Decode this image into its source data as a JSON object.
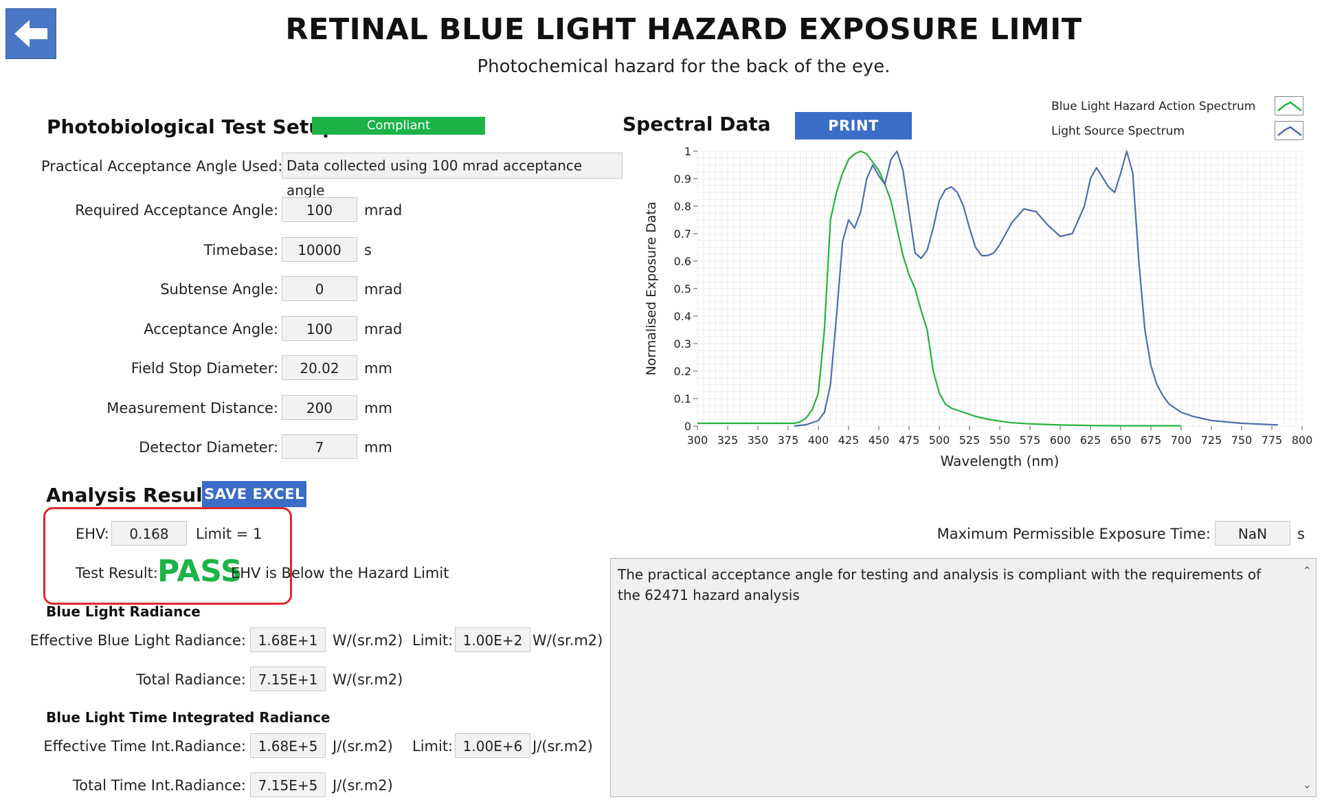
{
  "header": {
    "title": "RETINAL BLUE LIGHT HAZARD EXPOSURE LIMIT",
    "subtitle": "Photochemical hazard for the back of the eye.",
    "back_icon": "arrow-left-icon"
  },
  "setup": {
    "title": "Photobiological Test Setup",
    "status": "Compliant",
    "practical_angle": {
      "label": "Practical Acceptance Angle Used:",
      "value": "Data collected using 100 mrad acceptance angle"
    },
    "fields": [
      {
        "label": "Required Acceptance Angle:",
        "value": "100",
        "unit": "mrad"
      },
      {
        "label": "Timebase:",
        "value": "10000",
        "unit": "s"
      },
      {
        "label": "Subtense Angle:",
        "value": "0",
        "unit": "mrad"
      },
      {
        "label": "Acceptance Angle:",
        "value": "100",
        "unit": "mrad"
      },
      {
        "label": "Field Stop Diameter:",
        "value": "20.02",
        "unit": "mm"
      },
      {
        "label": "Measurement Distance:",
        "value": "200",
        "unit": "mm"
      },
      {
        "label": "Detector Diameter:",
        "value": "7",
        "unit": "mm"
      }
    ]
  },
  "spectral": {
    "title": "Spectral Data",
    "print_label": "PRINT SCREEN",
    "legend": [
      {
        "name": "Blue Light Hazard Action Spectrum",
        "color": "#22b33a"
      },
      {
        "name": "Light Source Spectrum",
        "color": "#4a6fae"
      }
    ]
  },
  "chart_data": {
    "type": "line",
    "xlabel": "Wavelength (nm)",
    "ylabel": "Normalised Exposure Data",
    "xlim": [
      300,
      800
    ],
    "ylim": [
      0,
      1
    ],
    "xticks": [
      "300",
      "325",
      "350",
      "375",
      "400",
      "425",
      "450",
      "475",
      "500",
      "525",
      "550",
      "575",
      "600",
      "625",
      "650",
      "675",
      "700",
      "725",
      "750",
      "775",
      "800"
    ],
    "yticks": [
      "0",
      "0.1",
      "0.2",
      "0.3",
      "0.4",
      "0.5",
      "0.6",
      "0.7",
      "0.8",
      "0.9",
      "1"
    ],
    "grid": true,
    "series": [
      {
        "name": "Blue Light Hazard Action Spectrum",
        "color": "#22b33a",
        "x": [
          300,
          380,
          385,
          390,
          395,
          400,
          405,
          410,
          415,
          420,
          425,
          430,
          435,
          440,
          445,
          450,
          455,
          460,
          465,
          470,
          475,
          480,
          485,
          490,
          495,
          500,
          505,
          510,
          520,
          530,
          540,
          550,
          560,
          575,
          600,
          625,
          650,
          700
        ],
        "y": [
          0.01,
          0.01,
          0.015,
          0.03,
          0.06,
          0.12,
          0.35,
          0.75,
          0.85,
          0.92,
          0.97,
          0.99,
          1.0,
          0.99,
          0.96,
          0.93,
          0.88,
          0.82,
          0.72,
          0.62,
          0.55,
          0.5,
          0.42,
          0.35,
          0.2,
          0.12,
          0.08,
          0.065,
          0.05,
          0.035,
          0.025,
          0.018,
          0.012,
          0.008,
          0.004,
          0.002,
          0.001,
          0.001
        ]
      },
      {
        "name": "Light Source Spectrum",
        "color": "#4a6fae",
        "x": [
          380,
          390,
          400,
          405,
          410,
          415,
          420,
          425,
          430,
          435,
          440,
          445,
          450,
          455,
          460,
          465,
          470,
          475,
          480,
          485,
          490,
          495,
          500,
          505,
          510,
          515,
          520,
          525,
          530,
          535,
          540,
          545,
          550,
          555,
          560,
          570,
          580,
          590,
          600,
          610,
          620,
          625,
          630,
          640,
          645,
          650,
          655,
          660,
          665,
          670,
          675,
          680,
          685,
          690,
          695,
          700,
          710,
          725,
          750,
          780
        ],
        "y": [
          0.0,
          0.005,
          0.02,
          0.05,
          0.15,
          0.4,
          0.67,
          0.75,
          0.72,
          0.78,
          0.9,
          0.95,
          0.91,
          0.88,
          0.97,
          1.0,
          0.93,
          0.78,
          0.63,
          0.61,
          0.64,
          0.72,
          0.82,
          0.86,
          0.87,
          0.85,
          0.8,
          0.72,
          0.65,
          0.62,
          0.62,
          0.63,
          0.66,
          0.7,
          0.74,
          0.79,
          0.78,
          0.73,
          0.69,
          0.7,
          0.8,
          0.9,
          0.94,
          0.87,
          0.85,
          0.92,
          1.0,
          0.92,
          0.6,
          0.35,
          0.22,
          0.15,
          0.11,
          0.08,
          0.065,
          0.05,
          0.035,
          0.02,
          0.01,
          0.004
        ]
      }
    ]
  },
  "analysis": {
    "title": "Analysis Results",
    "save_label": "SAVE EXCEL",
    "ehv_label": "EHV:",
    "ehv_value": "0.168",
    "limit_text": "Limit = 1",
    "result_label": "Test Result:",
    "result_value": "PASS",
    "result_desc": "EHV is Below the Hazard Limit",
    "mpe_label": "Maximum Permissible Exposure Time:",
    "mpe_value": "NaN",
    "mpe_unit": "s",
    "message": "The practical acceptance angle for testing and analysis is compliant with the requirements of the 62471 hazard analysis"
  },
  "radiance": {
    "title": "Blue Light Radiance",
    "effective_label": "Effective Blue Light Radiance:",
    "effective_value": "1.68E+1",
    "effective_unit": "W/(sr.m2)",
    "limit_label": "Limit:",
    "limit_value": "1.00E+2",
    "limit_unit": "W/(sr.m2)",
    "total_label": "Total Radiance:",
    "total_value": "7.15E+1",
    "total_unit": "W/(sr.m2)"
  },
  "time_integrated": {
    "title": "Blue Light Time Integrated Radiance",
    "effective_label": "Effective Time Int.Radiance:",
    "effective_value": "1.68E+5",
    "effective_unit": "J/(sr.m2)",
    "limit_label": "Limit:",
    "limit_value": "1.00E+6",
    "limit_unit": "J/(sr.m2)",
    "total_label": "Total Time Int.Radiance:",
    "total_value": "7.15E+5",
    "total_unit": "J/(sr.m2)"
  }
}
